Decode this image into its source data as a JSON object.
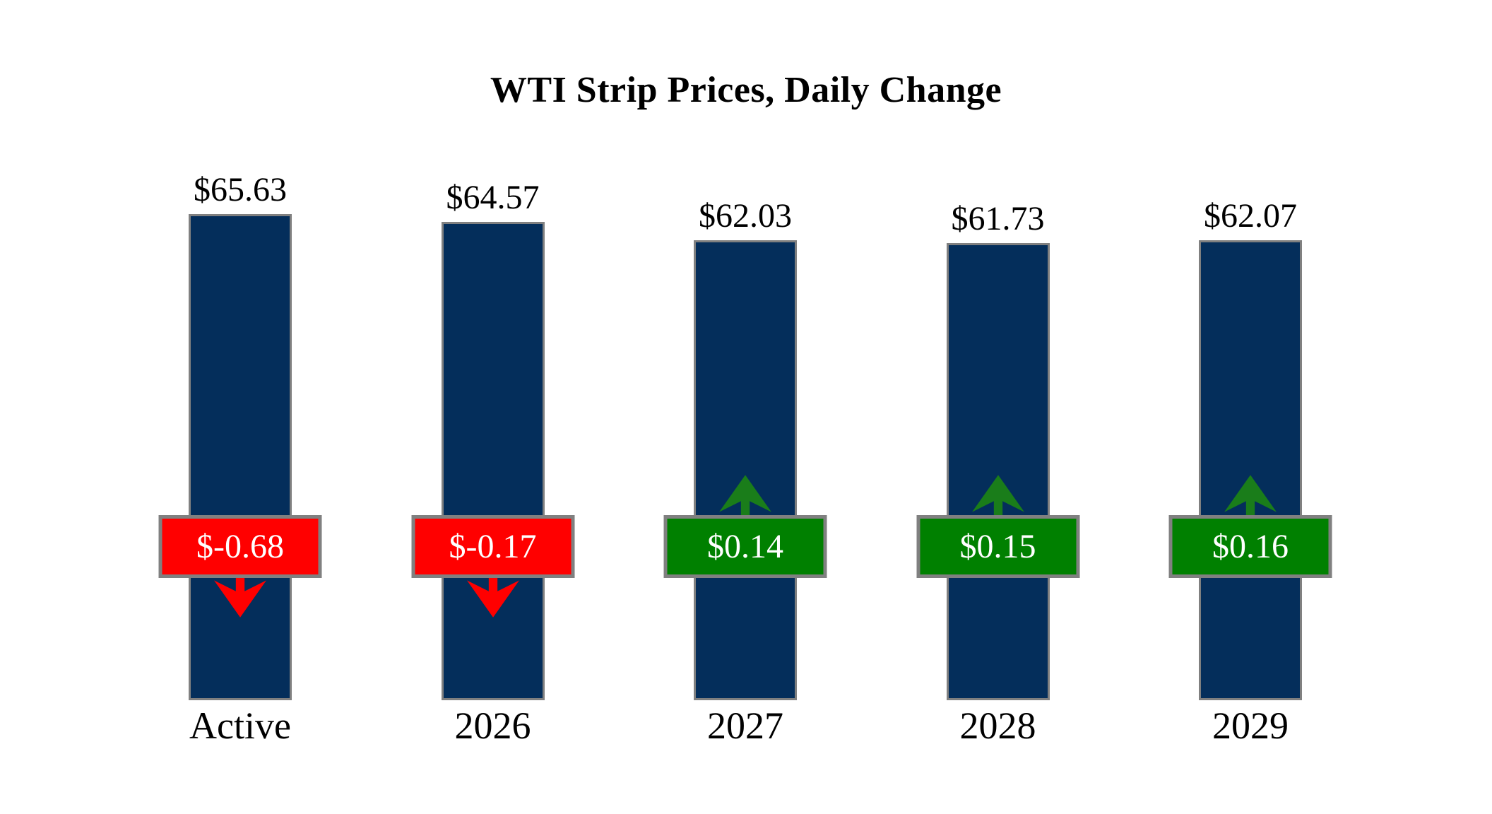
{
  "title": "WTI Strip Prices, Daily Change",
  "chart_data": {
    "type": "bar",
    "title": "WTI Strip Prices, Daily Change",
    "categories": [
      "Active",
      "2026",
      "2027",
      "2028",
      "2029"
    ],
    "series": [
      {
        "name": "WTI Strip Price",
        "values": [
          65.63,
          64.57,
          62.03,
          61.73,
          62.07
        ]
      },
      {
        "name": "Daily Change",
        "values": [
          -0.68,
          -0.17,
          0.14,
          0.15,
          0.16
        ]
      }
    ],
    "price_labels": [
      "$65.63",
      "$64.57",
      "$62.03",
      "$61.73",
      "$62.07"
    ],
    "change_labels": [
      "$-0.68",
      "$-0.17",
      "$0.14",
      "$0.15",
      "$0.16"
    ],
    "change_directions": [
      "down",
      "down",
      "up",
      "up",
      "up"
    ],
    "xlabel": "",
    "ylabel": "",
    "ylim": [
      0,
      70
    ],
    "grid": false,
    "legend": "none",
    "axes_visible": false,
    "colors": {
      "background": "#FFFFFF",
      "bar": "#042E5B",
      "bar_border": "#808080",
      "badge_border": "#808080",
      "negative": "#FF0000",
      "positive_badge": "#008000",
      "positive_arrow": "#1A7D1A",
      "badge_text": "#FFFFFF",
      "label_text": "#000000"
    }
  }
}
